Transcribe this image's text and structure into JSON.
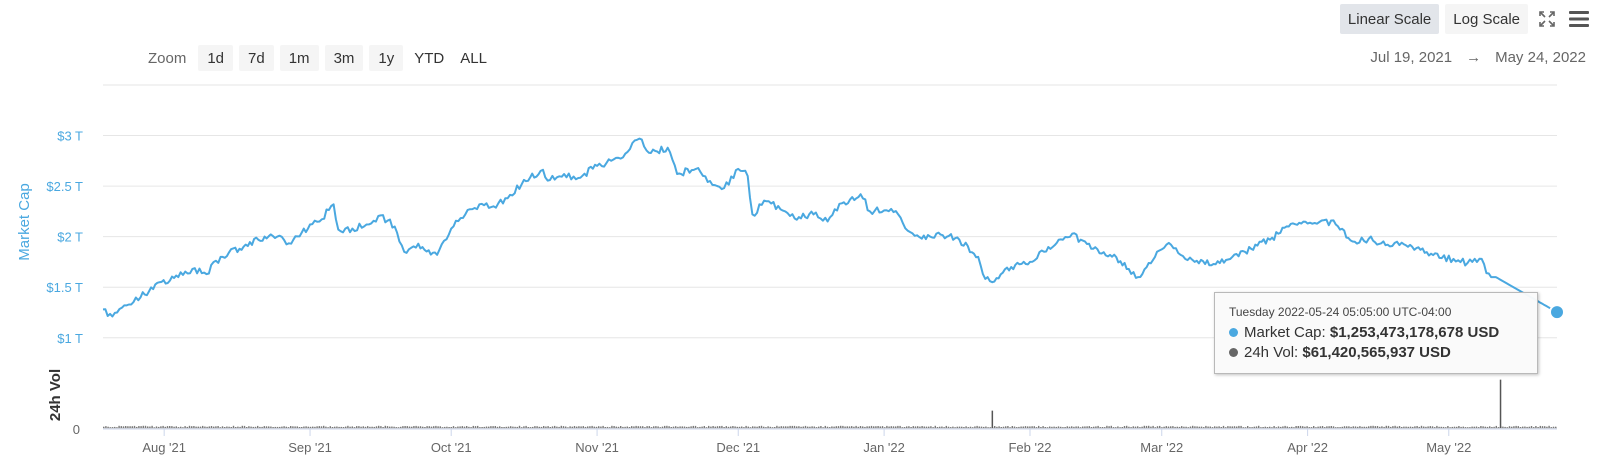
{
  "toolbar": {
    "zoom_label": "Zoom",
    "zoom_options": [
      "1d",
      "7d",
      "1m",
      "3m",
      "1y",
      "YTD",
      "ALL"
    ],
    "linear_label": "Linear Scale",
    "log_label": "Log Scale",
    "active_scale": "Linear Scale",
    "fullscreen_icon": "expand-icon",
    "menu_icon": "hamburger-menu-icon"
  },
  "range": {
    "start": "Jul 19, 2021",
    "arrow": "→",
    "end": "May 24, 2022"
  },
  "tooltip": {
    "time": "Tuesday 2022-05-24 05:05:00 UTC-04:00",
    "market_cap_label": "Market Cap: ",
    "market_cap_value": "$1,253,473,178,678 USD",
    "volume_label": "24h Vol: ",
    "volume_value": "$61,420,565,937 USD"
  },
  "colors": {
    "market_cap": "#4aa8e0",
    "volume": "#7a7a7a",
    "grid": "#e6e6e6",
    "axis_text": "#666666"
  },
  "chart_data": [
    {
      "type": "line",
      "ylabel": "Market Cap",
      "ylim": [
        0.78,
        3.5
      ],
      "y_ticks": [
        1,
        1.5,
        2,
        2.5,
        3
      ],
      "y_tick_labels": [
        "$1 T",
        "$1.5 T",
        "$2 T",
        "$2.5 T",
        "$3 T"
      ],
      "x_ticks": [
        "2021-08-01",
        "2021-09-01",
        "2021-10-01",
        "2021-11-01",
        "2021-12-01",
        "2022-01-01",
        "2022-02-01",
        "2022-03-01",
        "2022-04-01",
        "2022-05-01"
      ],
      "x_tick_labels": [
        "Aug '21",
        "Sep '21",
        "Oct '21",
        "Nov '21",
        "Dec '21",
        "Jan '22",
        "Feb '22",
        "Mar '22",
        "Apr '22",
        "May '22"
      ],
      "xlim": [
        "2021-07-19",
        "2022-05-24"
      ],
      "series": [
        {
          "name": "Market Cap",
          "unit": "USD trillions",
          "points": [
            [
              "2021-07-19",
              1.28
            ],
            [
              "2021-07-21",
              1.21
            ],
            [
              "2021-07-24",
              1.32
            ],
            [
              "2021-07-27",
              1.4
            ],
            [
              "2021-07-31",
              1.55
            ],
            [
              "2021-08-04",
              1.6
            ],
            [
              "2021-08-07",
              1.68
            ],
            [
              "2021-08-10",
              1.63
            ],
            [
              "2021-08-13",
              1.8
            ],
            [
              "2021-08-17",
              1.88
            ],
            [
              "2021-08-21",
              1.97
            ],
            [
              "2021-08-25",
              2.0
            ],
            [
              "2021-08-28",
              1.93
            ],
            [
              "2021-09-01",
              2.12
            ],
            [
              "2021-09-03",
              2.15
            ],
            [
              "2021-09-06",
              2.32
            ],
            [
              "2021-09-07",
              2.07
            ],
            [
              "2021-09-10",
              2.08
            ],
            [
              "2021-09-13",
              2.12
            ],
            [
              "2021-09-16",
              2.21
            ],
            [
              "2021-09-19",
              2.1
            ],
            [
              "2021-09-21",
              1.85
            ],
            [
              "2021-09-24",
              1.93
            ],
            [
              "2021-09-28",
              1.82
            ],
            [
              "2021-10-01",
              2.08
            ],
            [
              "2021-10-04",
              2.22
            ],
            [
              "2021-10-07",
              2.32
            ],
            [
              "2021-10-10",
              2.3
            ],
            [
              "2021-10-13",
              2.38
            ],
            [
              "2021-10-16",
              2.52
            ],
            [
              "2021-10-20",
              2.65
            ],
            [
              "2021-10-22",
              2.56
            ],
            [
              "2021-10-25",
              2.62
            ],
            [
              "2021-10-28",
              2.58
            ],
            [
              "2021-11-01",
              2.7
            ],
            [
              "2021-11-04",
              2.75
            ],
            [
              "2021-11-07",
              2.82
            ],
            [
              "2021-11-10",
              2.97
            ],
            [
              "2021-11-12",
              2.83
            ],
            [
              "2021-11-16",
              2.88
            ],
            [
              "2021-11-18",
              2.62
            ],
            [
              "2021-11-22",
              2.67
            ],
            [
              "2021-11-25",
              2.55
            ],
            [
              "2021-11-28",
              2.48
            ],
            [
              "2021-12-01",
              2.67
            ],
            [
              "2021-12-03",
              2.6
            ],
            [
              "2021-12-04",
              2.22
            ],
            [
              "2021-12-07",
              2.35
            ],
            [
              "2021-12-10",
              2.27
            ],
            [
              "2021-12-13",
              2.18
            ],
            [
              "2021-12-17",
              2.22
            ],
            [
              "2021-12-20",
              2.15
            ],
            [
              "2021-12-23",
              2.33
            ],
            [
              "2021-12-27",
              2.42
            ],
            [
              "2021-12-29",
              2.25
            ],
            [
              "2022-01-01",
              2.26
            ],
            [
              "2022-01-04",
              2.22
            ],
            [
              "2022-01-06",
              2.06
            ],
            [
              "2022-01-09",
              1.98
            ],
            [
              "2022-01-13",
              2.02
            ],
            [
              "2022-01-17",
              1.97
            ],
            [
              "2022-01-21",
              1.8
            ],
            [
              "2022-01-22",
              1.63
            ],
            [
              "2022-01-24",
              1.55
            ],
            [
              "2022-01-28",
              1.7
            ],
            [
              "2022-02-01",
              1.75
            ],
            [
              "2022-02-04",
              1.85
            ],
            [
              "2022-02-08",
              1.97
            ],
            [
              "2022-02-10",
              2.03
            ],
            [
              "2022-02-14",
              1.88
            ],
            [
              "2022-02-18",
              1.82
            ],
            [
              "2022-02-22",
              1.68
            ],
            [
              "2022-02-24",
              1.6
            ],
            [
              "2022-02-28",
              1.85
            ],
            [
              "2022-03-02",
              1.92
            ],
            [
              "2022-03-05",
              1.82
            ],
            [
              "2022-03-08",
              1.75
            ],
            [
              "2022-03-12",
              1.73
            ],
            [
              "2022-03-16",
              1.8
            ],
            [
              "2022-03-20",
              1.88
            ],
            [
              "2022-03-24",
              1.97
            ],
            [
              "2022-03-28",
              2.1
            ],
            [
              "2022-04-01",
              2.13
            ],
            [
              "2022-04-04",
              2.16
            ],
            [
              "2022-04-07",
              2.12
            ],
            [
              "2022-04-11",
              1.95
            ],
            [
              "2022-04-14",
              1.98
            ],
            [
              "2022-04-18",
              1.92
            ],
            [
              "2022-04-21",
              1.94
            ],
            [
              "2022-04-25",
              1.87
            ],
            [
              "2022-04-29",
              1.79
            ],
            [
              "2022-05-02",
              1.78
            ],
            [
              "2022-05-05",
              1.74
            ],
            [
              "2022-05-08",
              1.78
            ],
            [
              "2022-05-09",
              1.64
            ],
            [
              "2022-05-11",
              1.6
            ]
          ],
          "last_point": [
            "2022-05-24",
            1.253
          ]
        },
        {
          "name": "24h Vol",
          "unit": "USD billions",
          "ylim": [
            0,
            500
          ],
          "y_tick_labels": [
            "0"
          ],
          "baseline_value": 12,
          "spikes": [
            [
              "2022-01-24",
              140
            ],
            [
              "2022-05-12",
              390
            ]
          ]
        }
      ]
    }
  ]
}
